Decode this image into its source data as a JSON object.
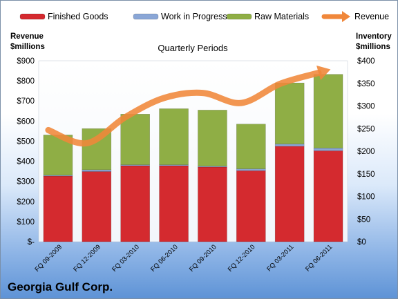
{
  "chart_data": {
    "type": "bar",
    "stacked": true,
    "subtitle": "Quarterly Periods",
    "company": "Georgia Gulf Corp.",
    "left_axis_title": [
      "Revenue",
      "$millions"
    ],
    "right_axis_title": [
      "Inventory",
      "$millions"
    ],
    "categories": [
      "FQ 09-2009",
      "FQ 12-2009",
      "FQ 03-2010",
      "FQ 06-2010",
      "FQ 09-2010",
      "FQ 12-2010",
      "FQ 03-2011",
      "FQ 06-2011"
    ],
    "left_ticks": [
      "$-",
      "$100",
      "$200",
      "$300",
      "$400",
      "$500",
      "$600",
      "$700",
      "$800",
      "$900"
    ],
    "right_ticks": [
      "$0",
      "$50",
      "$100",
      "$150",
      "$200",
      "$250",
      "$300",
      "$350",
      "$400"
    ],
    "left_ylim": [
      0,
      900
    ],
    "right_ylim": [
      0,
      400
    ],
    "series": [
      {
        "name": "Finished Goods",
        "axis": "right",
        "color": "#d42a2f",
        "values": [
          145,
          155,
          168,
          168,
          165,
          157,
          211,
          201
        ]
      },
      {
        "name": "Work in Progress",
        "axis": "right",
        "color": "#8aa6d6",
        "values": [
          2,
          4,
          2,
          2,
          2,
          4,
          5,
          6
        ]
      },
      {
        "name": "Raw Materials",
        "axis": "right",
        "color": "#8fae45",
        "values": [
          89,
          91,
          112,
          124,
          124,
          99,
          135,
          163
        ]
      },
      {
        "name": "Revenue",
        "axis": "left",
        "type": "line",
        "color": "#f0873a",
        "values": [
          555,
          490,
          620,
          715,
          740,
          690,
          785,
          840
        ]
      }
    ],
    "legend_position": "top",
    "grid": false
  }
}
